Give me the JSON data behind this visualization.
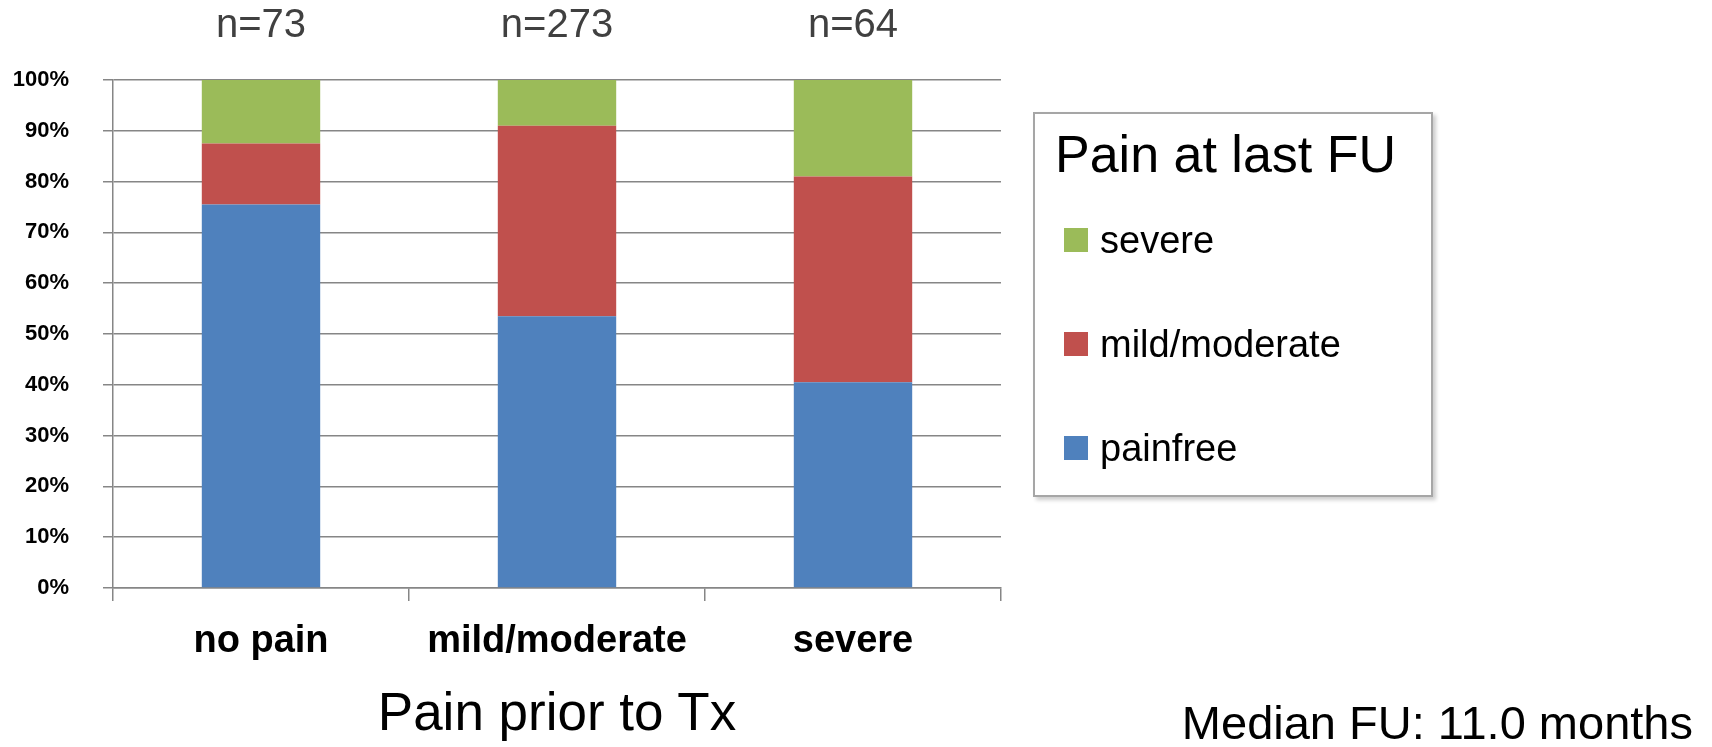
{
  "chart_data": {
    "type": "bar",
    "stacked": true,
    "categories": [
      "no pain",
      "mild/moderate",
      "severe"
    ],
    "xlabel": "Pain prior to Tx",
    "legend_title": "Pain at last FU",
    "series": [
      {
        "name": "painfree",
        "color": "#4f81bd",
        "values": [
          75.5,
          53.5,
          40.5
        ]
      },
      {
        "name": "mild/moderate",
        "color": "#c0504d",
        "values": [
          12,
          37.5,
          40.5
        ]
      },
      {
        "name": "severe",
        "color": "#9bbb59",
        "values": [
          12.5,
          9,
          19
        ]
      }
    ],
    "ylim": [
      0,
      100
    ],
    "yticks": [
      {
        "value": 0,
        "label": "0%"
      },
      {
        "value": 10,
        "label": "10%"
      },
      {
        "value": 20,
        "label": "20%"
      },
      {
        "value": 30,
        "label": "30%"
      },
      {
        "value": 40,
        "label": "40%"
      },
      {
        "value": 50,
        "label": "50%"
      },
      {
        "value": 60,
        "label": "60%"
      },
      {
        "value": 70,
        "label": "70%"
      },
      {
        "value": 80,
        "label": "80%"
      },
      {
        "value": 90,
        "label": "90%"
      },
      {
        "value": 100,
        "label": "100%"
      }
    ],
    "grid": "y",
    "legend": "right",
    "annotations": [
      "n=73",
      "n=273",
      "n=64",
      "Median FU: 11.0 months"
    ]
  }
}
